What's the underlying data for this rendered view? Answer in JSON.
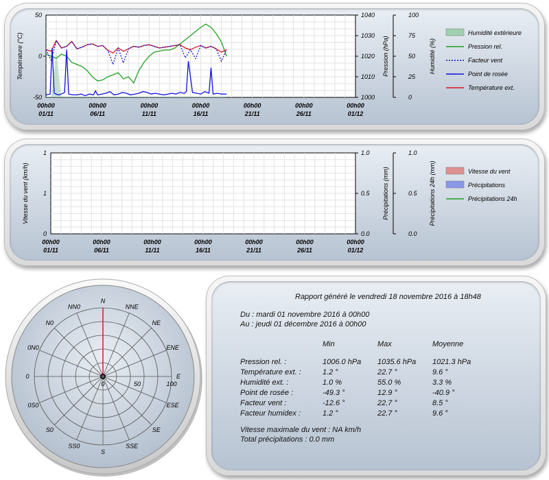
{
  "chart_data": [
    {
      "type": "line",
      "x_ticks": [
        [
          "00h00",
          "01/11"
        ],
        [
          "00h00",
          "06/11"
        ],
        [
          "00h00",
          "11/11"
        ],
        [
          "00h00",
          "16/11"
        ],
        [
          "00h00",
          "21/11"
        ],
        [
          "00h00",
          "26/11"
        ],
        [
          "00h00",
          "01/12"
        ]
      ],
      "x_range": [
        0,
        30
      ],
      "left_axis": {
        "label": "Température (°C)",
        "range": [
          -50,
          50
        ],
        "ticks": [
          "-50",
          "0",
          "50"
        ]
      },
      "right_axis_1": {
        "label": "Pression (hPa)",
        "range": [
          1000,
          1040
        ],
        "ticks": [
          "1000",
          "1010",
          "1020",
          "1030",
          "1040"
        ]
      },
      "right_axis_2": {
        "label": "Humidité (%)",
        "range": [
          0,
          100
        ],
        "ticks": [
          "0",
          "25",
          "50",
          "75",
          "100"
        ]
      },
      "legend": [
        {
          "name": "Humidité extérieure",
          "color": "#9fd0b0",
          "kind": "area"
        },
        {
          "name": "Pression rel.",
          "color": "#20a020",
          "kind": "line"
        },
        {
          "name": "Facteur vent",
          "color": "#1010c0",
          "kind": "dotted"
        },
        {
          "name": "Point de rosée",
          "color": "#1010e0",
          "kind": "line"
        },
        {
          "name": "Température ext.",
          "color": "#e01020",
          "kind": "line"
        }
      ],
      "series": [
        {
          "name": "Température ext.",
          "axis": "left",
          "color": "#e01020",
          "x": [
            0,
            0.5,
            1,
            1.5,
            2,
            2.5,
            3,
            3.5,
            4,
            4.5,
            5,
            5.5,
            6,
            6.5,
            7,
            7.5,
            8,
            8.5,
            9,
            9.5,
            10,
            10.5,
            11,
            11.5,
            12,
            12.5,
            13,
            13.5,
            14,
            14.5,
            15,
            15.5,
            16,
            16.5,
            17,
            17.5
          ],
          "y": [
            8,
            6,
            19,
            10,
            12,
            18,
            9,
            11,
            14,
            15,
            12,
            13,
            7,
            4,
            10,
            6,
            9,
            12,
            11,
            13,
            14,
            12,
            10,
            11,
            12,
            13,
            14,
            10,
            8,
            11,
            13,
            10,
            12,
            9,
            5,
            8
          ]
        },
        {
          "name": "Facteur vent",
          "axis": "left",
          "color": "#1010c0",
          "dash": "2,2",
          "x": [
            0,
            0.5,
            1,
            1.5,
            2,
            2.5,
            3,
            3.5,
            4,
            4.5,
            5,
            5.5,
            6,
            6.5,
            7,
            7.5,
            8,
            8.5,
            9,
            9.5,
            10,
            10.5,
            11,
            11.5,
            12,
            12.5,
            13,
            13.5,
            14,
            14.5,
            15,
            15.5,
            16,
            16.5,
            17,
            17.5
          ],
          "y": [
            8,
            -5,
            19,
            10,
            12,
            18,
            9,
            11,
            14,
            15,
            12,
            13,
            7,
            -10,
            10,
            -8,
            9,
            12,
            11,
            13,
            14,
            12,
            10,
            11,
            12,
            13,
            14,
            -2,
            8,
            -3,
            13,
            10,
            12,
            9,
            -6,
            8
          ]
        },
        {
          "name": "Point de rosée",
          "axis": "left",
          "color": "#1010e0",
          "x": [
            0,
            0.4,
            0.6,
            0.8,
            1.2,
            1.5,
            1.8,
            2.0,
            2.2,
            2.6,
            3.0,
            3.4,
            3.8,
            4.2,
            4.6,
            4.8,
            5.0,
            5.4,
            5.8,
            6.2,
            6.6,
            7.0,
            7.4,
            7.8,
            8.2,
            8.6,
            9.0,
            9.4,
            9.8,
            10.2,
            10.6,
            11.0,
            11.4,
            11.8,
            12.2,
            12.6,
            13.0,
            13.4,
            13.6,
            13.8,
            14.2,
            14.6,
            15.0,
            15.4,
            15.8,
            16.0,
            16.2,
            16.6,
            17.0,
            17.5
          ],
          "y": [
            -47,
            -46,
            10,
            -45,
            -47,
            -46,
            -44,
            8,
            -46,
            -47,
            -47,
            -46,
            -48,
            -46,
            -47,
            -42,
            -47,
            -46,
            -45,
            -43,
            -47,
            -46,
            -44,
            -45,
            -47,
            -46,
            -45,
            -43,
            -44,
            -46,
            -45,
            -46,
            -47,
            -46,
            -45,
            -46,
            -44,
            -45,
            -43,
            -6,
            -44,
            -45,
            -46,
            -43,
            -45,
            -14,
            -46,
            -45,
            -46,
            -46
          ]
        },
        {
          "name": "Pression rel.",
          "axis": "right1",
          "color": "#20a020",
          "x": [
            0,
            0.5,
            1,
            1.5,
            2,
            2.5,
            3,
            3.5,
            4,
            4.5,
            5,
            5.5,
            6,
            6.5,
            7,
            7.5,
            8,
            8.5,
            9,
            9.5,
            10,
            10.5,
            11,
            11.5,
            12,
            12.5,
            13,
            13.5,
            14,
            14.5,
            15,
            15.5,
            16,
            16.5,
            17,
            17.5
          ],
          "y": [
            1021,
            1020,
            1019,
            1021,
            1020,
            1017,
            1016,
            1015,
            1013,
            1010,
            1008,
            1008.5,
            1010,
            1011,
            1012,
            1009,
            1010,
            1007,
            1013,
            1017,
            1020,
            1022,
            1022.5,
            1023,
            1023,
            1024,
            1026,
            1028,
            1030,
            1032,
            1034,
            1035.6,
            1034,
            1031,
            1027,
            1020
          ]
        },
        {
          "name": "Humidité extérieure",
          "axis": "right2",
          "color": "#9fd0b0",
          "x": [
            0,
            0.5,
            1,
            1.5,
            2,
            2.5,
            3,
            3.5,
            4,
            4.5,
            5,
            5.5,
            6,
            6.5,
            7,
            7.5,
            8,
            8.5,
            9,
            9.5,
            10,
            10.5,
            11,
            11.5,
            12,
            12.5,
            13,
            13.5,
            14,
            14.5,
            15,
            15.5,
            16,
            16.5,
            17,
            17.5
          ],
          "y": [
            1,
            1,
            55,
            1,
            1,
            1,
            1,
            1,
            1,
            1,
            1,
            1,
            1,
            1,
            1,
            1,
            1,
            1,
            1,
            1,
            1,
            1,
            1,
            1,
            1,
            1,
            1,
            1,
            1,
            1,
            1,
            1,
            1,
            1,
            1,
            1
          ]
        }
      ]
    },
    {
      "type": "line",
      "x_ticks": [
        [
          "00h00",
          "01/11"
        ],
        [
          "00h00",
          "06/11"
        ],
        [
          "00h00",
          "11/11"
        ],
        [
          "00h00",
          "16/11"
        ],
        [
          "00h00",
          "21/11"
        ],
        [
          "00h00",
          "26/11"
        ],
        [
          "00h00",
          "01/12"
        ]
      ],
      "left_axis": {
        "label": "Vitesse du vent (km/h)",
        "ticks": [
          "0",
          "1",
          "1"
        ]
      },
      "right_axis_1": {
        "label": "Précipitations (mm)",
        "ticks": [
          "0.0",
          "0.5",
          "1.0"
        ]
      },
      "right_axis_2": {
        "label": "Précipitations 24h (mm)",
        "ticks": [
          "0.0",
          "0.5",
          "1.0"
        ]
      },
      "legend": [
        {
          "name": "Vitesse du vent",
          "color": "#e09090",
          "kind": "area"
        },
        {
          "name": "Précipitations",
          "color": "#8a98e8",
          "kind": "area"
        },
        {
          "name": "Précipitations 24h",
          "color": "#20a020",
          "kind": "line"
        }
      ],
      "series": []
    },
    {
      "type": "rose",
      "directions": [
        "N",
        "NNE",
        "NE",
        "ENE",
        "E",
        "ESE",
        "SE",
        "SSE",
        "S",
        "SS0",
        "S0",
        "0S0",
        "0",
        "0N0",
        "N0",
        "NN0"
      ],
      "radial_ticks": [
        "0",
        "50",
        "100"
      ],
      "values": [
        100,
        0,
        0,
        0,
        0,
        0,
        0,
        0,
        0,
        0,
        0,
        0,
        0,
        0,
        0,
        0
      ],
      "color": "#d02020"
    }
  ],
  "report": {
    "title": "Rapport généré le vendredi 18 novembre 2016 à 18h48",
    "from": "Du : mardi 01 novembre 2016 à 00h00",
    "to": "Au : jeudi 01 décembre 2016 à 00h00",
    "headers": [
      "Min",
      "Max",
      "Moyenne"
    ],
    "rows": [
      {
        "label": "Pression rel. :",
        "min": "1006.0 hPa",
        "max": "1035.6 hPa",
        "avg": "1021.3 hPa"
      },
      {
        "label": "Température ext. :",
        "min": "1.2 °",
        "max": "22.7 °",
        "avg": "9.6 °"
      },
      {
        "label": "Humidité ext. :",
        "min": "1.0 %",
        "max": "55.0 %",
        "avg": "3.3 %"
      },
      {
        "label": "Point de rosée :",
        "min": "-49.3 °",
        "max": "12.9 °",
        "avg": "-40.9 °"
      },
      {
        "label": "Facteur vent :",
        "min": "-12.6 °",
        "max": "22.7 °",
        "avg": "8.5 °"
      },
      {
        "label": "Facteur humidex :",
        "min": "1.2 °",
        "max": "22.7 °",
        "avg": "9.6 °"
      }
    ],
    "wind_max": "Vitesse maximale du vent : NA km/h",
    "total_precip": "Total précipitations : 0.0 mm"
  }
}
